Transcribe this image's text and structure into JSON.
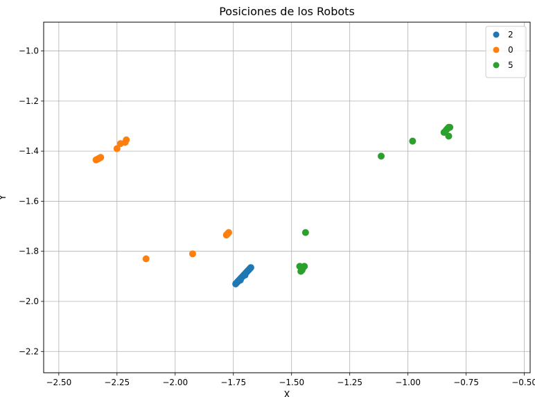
{
  "chart_data": {
    "type": "scatter",
    "title": "Posiciones de los Robots",
    "xlabel": "X",
    "ylabel": "Y",
    "xlim": [
      -2.565,
      -0.475
    ],
    "ylim": [
      -2.285,
      -0.885
    ],
    "xticks": [
      -2.5,
      -2.25,
      -2.0,
      -1.75,
      -1.5,
      -1.25,
      -1.0,
      -0.75,
      -0.5
    ],
    "xtick_labels": [
      "−2.50",
      "−2.25",
      "−2.00",
      "−1.75",
      "−1.50",
      "−1.25",
      "−1.00",
      "−0.75",
      "−0.50"
    ],
    "yticks": [
      -1.0,
      -1.2,
      -1.4,
      -1.6,
      -1.8,
      -2.0,
      -2.2
    ],
    "ytick_labels": [
      "−1.0",
      "−1.2",
      "−1.4",
      "−1.6",
      "−1.8",
      "−2.0",
      "−2.2"
    ],
    "grid": true,
    "legend_position": "top-right",
    "series": [
      {
        "name": "2",
        "color": "#1f77b4",
        "points": [
          [
            -1.74,
            -1.93
          ],
          [
            -1.735,
            -1.925
          ],
          [
            -1.73,
            -1.92
          ],
          [
            -1.725,
            -1.915
          ],
          [
            -1.72,
            -1.91
          ],
          [
            -1.715,
            -1.905
          ],
          [
            -1.71,
            -1.9
          ],
          [
            -1.705,
            -1.895
          ],
          [
            -1.7,
            -1.89
          ],
          [
            -1.695,
            -1.885
          ],
          [
            -1.69,
            -1.88
          ],
          [
            -1.685,
            -1.875
          ],
          [
            -1.68,
            -1.87
          ],
          [
            -1.675,
            -1.865
          ],
          [
            -1.72,
            -1.915
          ],
          [
            -1.7,
            -1.895
          ]
        ]
      },
      {
        "name": "0",
        "color": "#ff7f0e",
        "points": [
          [
            -2.34,
            -1.435
          ],
          [
            -2.335,
            -1.433
          ],
          [
            -2.33,
            -1.43
          ],
          [
            -2.325,
            -1.428
          ],
          [
            -2.32,
            -1.425
          ],
          [
            -2.25,
            -1.39
          ],
          [
            -2.235,
            -1.37
          ],
          [
            -2.215,
            -1.365
          ],
          [
            -2.21,
            -1.355
          ],
          [
            -2.125,
            -1.83
          ],
          [
            -1.925,
            -1.81
          ],
          [
            -1.78,
            -1.735
          ],
          [
            -1.775,
            -1.73
          ],
          [
            -1.77,
            -1.725
          ]
        ]
      },
      {
        "name": "5",
        "color": "#2ca02c",
        "points": [
          [
            -1.465,
            -1.86
          ],
          [
            -1.46,
            -1.88
          ],
          [
            -1.455,
            -1.875
          ],
          [
            -1.45,
            -1.865
          ],
          [
            -1.445,
            -1.86
          ],
          [
            -1.44,
            -1.725
          ],
          [
            -1.115,
            -1.42
          ],
          [
            -0.98,
            -1.36
          ],
          [
            -0.845,
            -1.325
          ],
          [
            -0.835,
            -1.315
          ],
          [
            -0.83,
            -1.31
          ],
          [
            -0.825,
            -1.305
          ],
          [
            -0.82,
            -1.305
          ],
          [
            -0.825,
            -1.34
          ]
        ]
      }
    ]
  }
}
